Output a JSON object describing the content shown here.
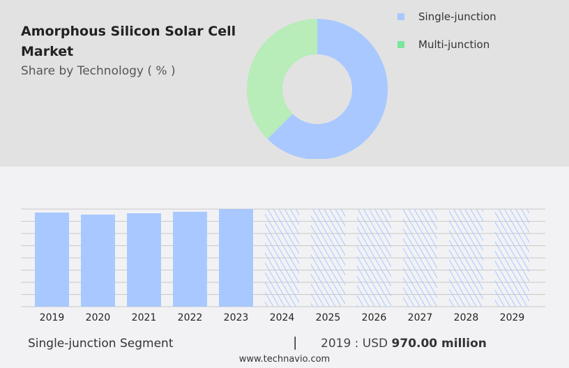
{
  "header": {
    "title": "Amorphous Silicon Solar Cell Market",
    "subtitle": "Share by Technology ( % )"
  },
  "chart_data": [
    {
      "type": "pie",
      "variant": "donut",
      "title": "Amorphous Silicon Solar Cell Market",
      "subtitle": "Share by Technology ( % )",
      "legend_position": "top-right",
      "slices": [
        {
          "name": "Single-junction",
          "value": 62.5,
          "color": "#a8c8ff"
        },
        {
          "name": "Multi-junction",
          "value": 37.5,
          "color": "#b8ecb8"
        }
      ],
      "legend_colors": [
        "#a8c8ff",
        "#7ae69a"
      ]
    },
    {
      "type": "bar",
      "categories": [
        "2019",
        "2020",
        "2021",
        "2022",
        "2023",
        "2024",
        "2025",
        "2026",
        "2027",
        "2028",
        "2029"
      ],
      "values": [
        970,
        949,
        963,
        978,
        1006,
        null,
        null,
        null,
        null,
        null,
        null
      ],
      "forecast_categories": [
        "2024",
        "2025",
        "2026",
        "2027",
        "2028",
        "2029"
      ],
      "ylim": [
        0,
        1006
      ],
      "grid": true,
      "color": "#a8c8ff"
    }
  ],
  "footer": {
    "segment": "Single-junction Segment",
    "separator": "|",
    "value_prefix": "2019 : USD",
    "value": "970.00 million",
    "url": "www.technavio.com"
  }
}
